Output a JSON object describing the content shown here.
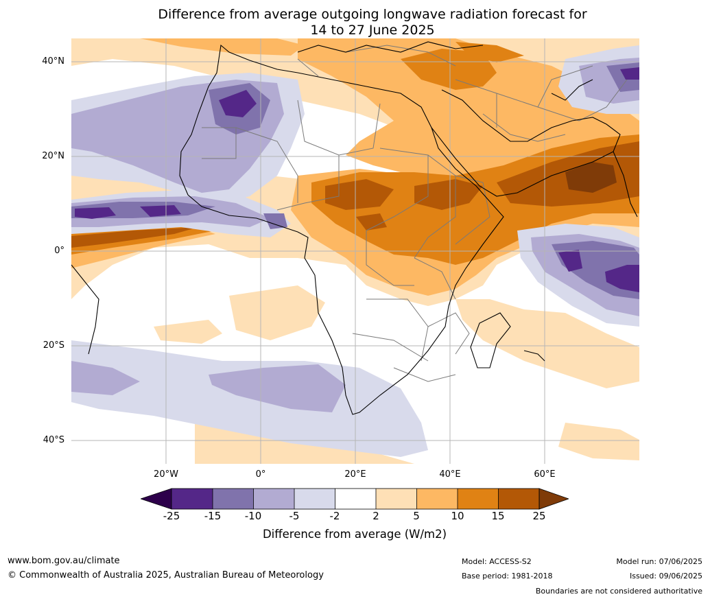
{
  "title": {
    "line1": "Difference from average outgoing longwave radiation forecast for",
    "line2": "14 to 27 June 2025"
  },
  "axes": {
    "lat_labels": [
      "40°N",
      "20°N",
      "0°",
      "20°S",
      "40°S"
    ],
    "lon_labels": [
      "20°W",
      "0°",
      "20°E",
      "40°E",
      "60°E"
    ]
  },
  "colorbar": {
    "title": "Difference from average (W/m2)",
    "ticks": [
      "-25",
      "-15",
      "-10",
      "-5",
      "-2",
      "2",
      "5",
      "10",
      "15",
      "25"
    ],
    "colors": {
      "below_min": "#2d004b",
      "bins": [
        "#542788",
        "#8073ac",
        "#b2abd2",
        "#d8daeb",
        "#ffffff",
        "#fee0b6",
        "#fdb863",
        "#e08214",
        "#b35806"
      ],
      "above_max": "#7f3b08"
    }
  },
  "footer": {
    "website": "www.bom.gov.au/climate",
    "copyright": "© Commonwealth of Australia 2025, Australian Bureau of Meteorology",
    "model": "Model: ACCESS-S2",
    "base_period": "Base period: 1981-2018",
    "model_run": "Model run: 07/06/2025",
    "issued": "Issued: 09/06/2025",
    "disclaimer": "Boundaries are not considered authoritative"
  }
}
